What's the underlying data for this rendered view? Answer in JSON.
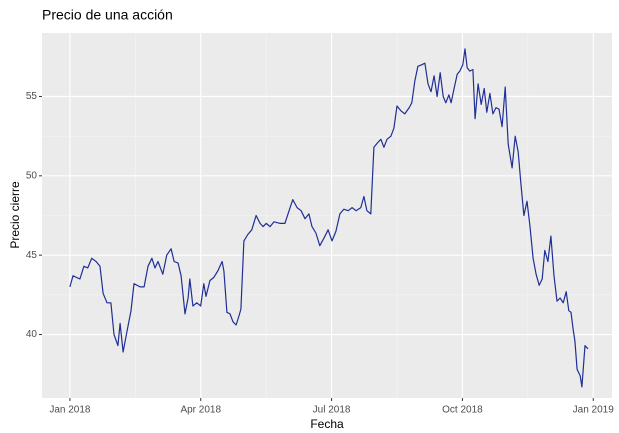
{
  "chart_data": {
    "type": "line",
    "title": "Precio de una acción",
    "xlabel": "Fecha",
    "ylabel": "Precio cierre",
    "x": [
      0,
      0.07,
      0.23,
      0.32,
      0.41,
      0.5,
      0.6,
      0.69,
      0.76,
      0.85,
      0.94,
      1.01,
      1.1,
      1.15,
      1.22,
      1.31,
      1.4,
      1.47,
      1.61,
      1.7,
      1.79,
      1.88,
      1.95,
      2.02,
      2.13,
      2.22,
      2.32,
      2.39,
      2.48,
      2.55,
      2.64,
      2.71,
      2.75,
      2.82,
      2.91,
      3.0,
      3.07,
      3.12,
      3.21,
      3.3,
      3.39,
      3.49,
      3.53,
      3.6,
      3.67,
      3.74,
      3.81,
      3.88,
      3.92,
      3.99,
      4.08,
      4.17,
      4.27,
      4.36,
      4.43,
      4.5,
      4.59,
      4.68,
      4.82,
      4.93,
      5.05,
      5.11,
      5.21,
      5.3,
      5.39,
      5.48,
      5.55,
      5.64,
      5.73,
      5.83,
      5.92,
      6.01,
      6.1,
      6.19,
      6.28,
      6.38,
      6.47,
      6.56,
      6.67,
      6.74,
      6.81,
      6.9,
      6.97,
      7.06,
      7.13,
      7.2,
      7.27,
      7.36,
      7.43,
      7.5,
      7.59,
      7.68,
      7.78,
      7.84,
      7.91,
      7.98,
      8.07,
      8.14,
      8.21,
      8.28,
      8.35,
      8.42,
      8.49,
      8.56,
      8.62,
      8.69,
      8.74,
      8.81,
      8.88,
      8.94,
      9.01,
      9.06,
      9.11,
      9.17,
      9.24,
      9.29,
      9.36,
      9.43,
      9.5,
      9.56,
      9.63,
      9.7,
      9.77,
      9.84,
      9.91,
      9.98,
      10.05,
      10.14,
      10.21,
      10.28,
      10.34,
      10.41,
      10.48,
      10.55,
      10.62,
      10.69,
      10.76,
      10.83,
      10.89,
      10.96,
      11.03,
      11.1,
      11.17,
      11.24,
      11.31,
      11.38,
      11.44,
      11.49,
      11.54,
      11.58,
      11.63,
      11.7,
      11.74,
      11.81,
      11.88
    ],
    "series": [
      {
        "color": "#1f2f96",
        "values": [
          43.0,
          43.7,
          43.5,
          44.3,
          44.2,
          44.8,
          44.6,
          44.3,
          42.6,
          42.0,
          42.0,
          40.0,
          39.3,
          40.7,
          38.9,
          40.2,
          41.5,
          43.2,
          43.0,
          43.0,
          44.3,
          44.8,
          44.2,
          44.6,
          43.8,
          45.0,
          45.4,
          44.6,
          44.5,
          43.7,
          41.3,
          42.3,
          43.5,
          41.8,
          42.0,
          41.8,
          43.2,
          42.4,
          43.4,
          43.6,
          44.0,
          44.6,
          44.0,
          41.4,
          41.3,
          40.8,
          40.6,
          41.2,
          41.6,
          45.9,
          46.3,
          46.6,
          47.5,
          47.0,
          46.8,
          47.0,
          46.8,
          47.1,
          47.0,
          47.0,
          48.0,
          48.5,
          48.0,
          47.8,
          47.3,
          47.6,
          46.8,
          46.4,
          45.6,
          46.1,
          46.6,
          45.9,
          46.5,
          47.6,
          47.9,
          47.8,
          48.0,
          47.8,
          48.0,
          48.7,
          47.8,
          47.6,
          51.8,
          52.1,
          52.3,
          51.8,
          52.3,
          52.5,
          53.0,
          54.4,
          54.1,
          53.9,
          54.3,
          54.6,
          56.0,
          56.9,
          57.0,
          57.1,
          55.8,
          55.3,
          56.3,
          55.0,
          56.5,
          55.0,
          54.6,
          55.1,
          54.6,
          55.5,
          56.4,
          56.6,
          57.0,
          58.0,
          56.8,
          56.6,
          56.7,
          53.6,
          55.8,
          54.5,
          55.5,
          54.0,
          55.2,
          53.9,
          54.3,
          54.2,
          53.1,
          55.6,
          52.0,
          50.5,
          52.5,
          51.5,
          49.5,
          47.5,
          48.4,
          46.8,
          44.8,
          43.8,
          43.1,
          43.5,
          45.3,
          44.6,
          46.2,
          43.7,
          42.1,
          42.3,
          42.0,
          42.7,
          41.5,
          41.4,
          40.3,
          39.6,
          37.8,
          37.4,
          36.7,
          39.3,
          39.1
        ]
      }
    ],
    "xlim": [
      -0.64,
      12.43
    ],
    "xticks": [
      {
        "value": 0,
        "label": "Jan 2018"
      },
      {
        "value": 3,
        "label": "Apr 2018"
      },
      {
        "value": 6,
        "label": "Jul 2018"
      },
      {
        "value": 9,
        "label": "Oct 2018"
      },
      {
        "value": 12,
        "label": "Jan 2019"
      }
    ],
    "ylim": [
      36,
      59
    ],
    "yticks": [
      40,
      45,
      50,
      55
    ],
    "grid": true
  }
}
